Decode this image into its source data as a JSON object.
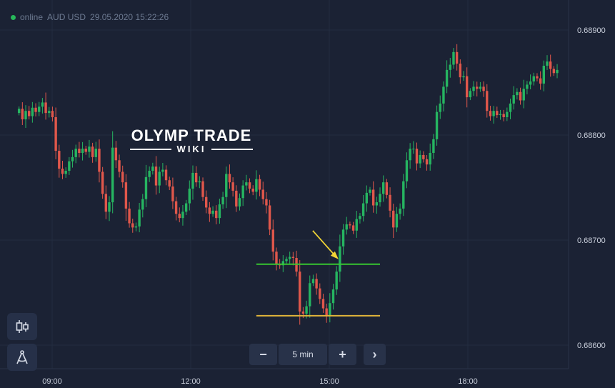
{
  "header": {
    "status": "online",
    "pair": "AUD USD",
    "datetime": "29.05.2020 15:22:26"
  },
  "watermark": {
    "line1": "OLYMP TRADE",
    "line2": "WIKI"
  },
  "toolbar": {
    "indicators_icon": "candlestick-icon",
    "drawing_icon": "compass-icon"
  },
  "timeframe": {
    "minus": "−",
    "value": "5 min",
    "plus": "+",
    "next": "›"
  },
  "colors": {
    "background": "#1b2234",
    "bull": "#26b561",
    "bear": "#e0574b",
    "grid": "#232c40",
    "resistance_line": "#37c630",
    "support_line": "#e0b43a",
    "arrow": "#f2d535",
    "status_dot": "#27b85a"
  },
  "chart_data": {
    "type": "candlestick",
    "x_ticks": [
      "09:00",
      "12:00",
      "15:00",
      "18:00"
    ],
    "y_ticks": [
      "0.68900",
      "0.68800",
      "0.68700",
      "0.68600"
    ],
    "ylim": [
      0.68584,
      0.68922
    ],
    "xlim": [
      "08:17",
      "19:56"
    ],
    "interval": "5 min",
    "close": [
      0.68825,
      0.68815,
      0.68823,
      0.68818,
      0.68826,
      0.68822,
      0.68827,
      0.68831,
      0.68821,
      0.68823,
      0.68817,
      0.68785,
      0.68768,
      0.68763,
      0.68766,
      0.68775,
      0.68779,
      0.68787,
      0.68783,
      0.68787,
      0.68784,
      0.68789,
      0.68779,
      0.68787,
      0.68765,
      0.68744,
      0.68727,
      0.68736,
      0.68788,
      0.68776,
      0.68765,
      0.68755,
      0.6873,
      0.68716,
      0.68712,
      0.68713,
      0.68729,
      0.68739,
      0.6876,
      0.68766,
      0.6877,
      0.68752,
      0.68765,
      0.68767,
      0.68757,
      0.68751,
      0.68737,
      0.68725,
      0.68721,
      0.68727,
      0.68735,
      0.68749,
      0.68764,
      0.68755,
      0.68756,
      0.68741,
      0.68731,
      0.68725,
      0.68728,
      0.68721,
      0.68734,
      0.68741,
      0.68763,
      0.68755,
      0.68747,
      0.68732,
      0.6874,
      0.68752,
      0.68755,
      0.68749,
      0.68746,
      0.68758,
      0.68748,
      0.68739,
      0.68733,
      0.6871,
      0.68689,
      0.68677,
      0.68676,
      0.6868,
      0.68682,
      0.68684,
      0.68683,
      0.6867,
      0.68632,
      0.6863,
      0.68637,
      0.68659,
      0.68663,
      0.68654,
      0.68644,
      0.68635,
      0.68628,
      0.6864,
      0.68653,
      0.6867,
      0.68694,
      0.6871,
      0.68715,
      0.68714,
      0.68709,
      0.6872,
      0.68723,
      0.68735,
      0.68745,
      0.68748,
      0.68733,
      0.68736,
      0.68744,
      0.68755,
      0.68743,
      0.68728,
      0.68712,
      0.68725,
      0.6873,
      0.68756,
      0.68776,
      0.68787,
      0.68787,
      0.68773,
      0.68781,
      0.68777,
      0.68772,
      0.68783,
      0.68796,
      0.68822,
      0.6883,
      0.68846,
      0.68862,
      0.68867,
      0.68879,
      0.68868,
      0.68855,
      0.68856,
      0.68836,
      0.68842,
      0.68846,
      0.68844,
      0.68846,
      0.68842,
      0.68823,
      0.68818,
      0.68823,
      0.68819,
      0.6882,
      0.68817,
      0.68822,
      0.6883,
      0.68838,
      0.68841,
      0.68833,
      0.68844,
      0.68848,
      0.68851,
      0.68856,
      0.68854,
      0.68849,
      0.68866,
      0.6887,
      0.68863,
      0.68859,
      0.68862
    ]
  }
}
